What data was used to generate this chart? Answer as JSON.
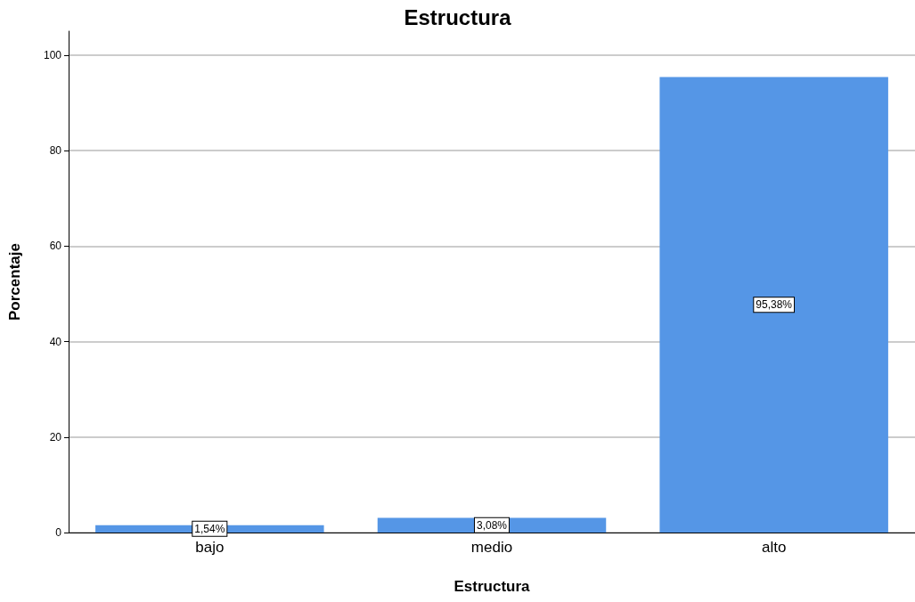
{
  "chart_data": {
    "type": "bar",
    "title": "Estructura",
    "xlabel": "Estructura",
    "ylabel": "Porcentaje",
    "categories": [
      "bajo",
      "medio",
      "alto"
    ],
    "values": [
      1.54,
      3.08,
      95.38
    ],
    "value_labels": [
      "1,54%",
      "3,08%",
      "95,38%"
    ],
    "color": "#5596e6",
    "ylim": [
      0,
      105
    ],
    "yticks": [
      0,
      20,
      40,
      60,
      80,
      100
    ],
    "grid": "y"
  }
}
